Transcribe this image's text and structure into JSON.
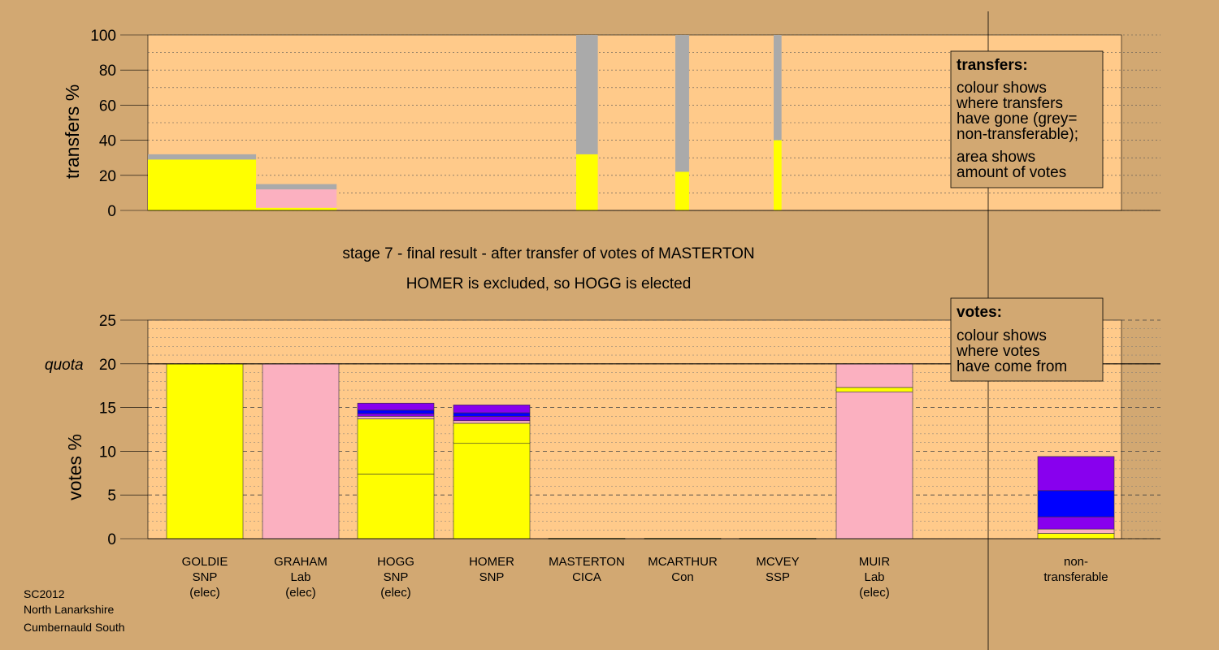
{
  "footer": {
    "line1": "SC2012",
    "line2": "North Lanarkshire",
    "line3": "Cumbernauld South"
  },
  "stage_title": "stage 7 - final result - after transfer of votes of MASTERTON",
  "stage_subtitle": "HOMER is excluded, so HOGG is elected",
  "legend_transfers": {
    "title": "transfers:",
    "lines": [
      "colour shows",
      "where transfers",
      "have gone (grey=",
      "non-transferable);",
      "area shows",
      "amount of votes"
    ]
  },
  "legend_votes": {
    "title": "votes:",
    "lines": [
      "colour shows",
      "where votes",
      "have come from"
    ]
  },
  "colors": {
    "SNP": "#FFFF00",
    "Lab": "#FBB0C0",
    "Purple": "#8800EE",
    "Blue": "#0000FF",
    "Grey": "#AAAAAA",
    "Plot": "#FFCA8A",
    "Background": "#D2A872"
  },
  "chart_data": [
    {
      "type": "bar",
      "title": "",
      "ylabel": "transfers %",
      "ylim": [
        0,
        100
      ],
      "yticks": [
        0,
        20,
        40,
        60,
        80,
        100
      ],
      "bars": [
        {
          "name": "GOLDIE",
          "width_pct_of_votes": 5.5,
          "segments": [
            {
              "color": "SNP",
              "value": 29
            },
            {
              "color": "Grey",
              "value": 3
            }
          ]
        },
        {
          "name": "GRAHAM",
          "width_pct_of_votes": 4.1,
          "segments": [
            {
              "color": "SNP",
              "value": 1.5
            },
            {
              "color": "Lab",
              "value": 10.5
            },
            {
              "color": "Grey",
              "value": 3
            }
          ]
        },
        {
          "name": "MASTERTON",
          "width_pct_of_votes": 1.1,
          "segments": [
            {
              "color": "SNP",
              "value": 32
            },
            {
              "color": "Grey",
              "value": 68
            }
          ]
        },
        {
          "name": "MCARTHUR",
          "width_pct_of_votes": 0.7,
          "segments": [
            {
              "color": "SNP",
              "value": 22
            },
            {
              "color": "Grey",
              "value": 78
            }
          ]
        },
        {
          "name": "MCVEY",
          "width_pct_of_votes": 0.4,
          "segments": [
            {
              "color": "SNP",
              "value": 40
            },
            {
              "color": "Grey",
              "value": 60
            }
          ]
        }
      ]
    },
    {
      "type": "bar",
      "title": "",
      "ylabel": "votes %",
      "ylim": [
        0,
        25
      ],
      "yticks": [
        0,
        5,
        10,
        15,
        20,
        25
      ],
      "quota": 20,
      "quota_label": "quota",
      "categories": [
        {
          "name": "GOLDIE",
          "party": "SNP",
          "status": "(elec)"
        },
        {
          "name": "GRAHAM",
          "party": "Lab",
          "status": "(elec)"
        },
        {
          "name": "HOGG",
          "party": "SNP",
          "status": "(elec)"
        },
        {
          "name": "HOMER",
          "party": "SNP",
          "status": ""
        },
        {
          "name": "MASTERTON",
          "party": "CICA",
          "status": ""
        },
        {
          "name": "MCARTHUR",
          "party": "Con",
          "status": ""
        },
        {
          "name": "MCVEY",
          "party": "SSP",
          "status": ""
        },
        {
          "name": "MUIR",
          "party": "Lab",
          "status": "(elec)"
        },
        {
          "name": "non-",
          "party": "transferable",
          "status": ""
        }
      ],
      "stacks": [
        [
          {
            "color": "SNP",
            "value": 20
          }
        ],
        [
          {
            "color": "Lab",
            "value": 20
          }
        ],
        [
          {
            "color": "SNP",
            "value": 7.4
          },
          {
            "color": "SNP",
            "value": 6.3
          },
          {
            "color": "Lab",
            "value": 0.3
          },
          {
            "color": "Purple",
            "value": 0.3
          },
          {
            "color": "Blue",
            "value": 0.4
          },
          {
            "color": "Purple",
            "value": 0.8
          }
        ],
        [
          {
            "color": "SNP",
            "value": 10.9
          },
          {
            "color": "SNP",
            "value": 2.3
          },
          {
            "color": "Lab",
            "value": 0.3
          },
          {
            "color": "Purple",
            "value": 0.5
          },
          {
            "color": "Blue",
            "value": 0.4
          },
          {
            "color": "Purple",
            "value": 0.9
          }
        ],
        [
          {
            "color": "SNP",
            "value": 0.05
          }
        ],
        [
          {
            "color": "SNP",
            "value": 0.05
          }
        ],
        [
          {
            "color": "SNP",
            "value": 0.05
          }
        ],
        [
          {
            "color": "Lab",
            "value": 16.8
          },
          {
            "color": "SNP",
            "value": 0.5
          },
          {
            "color": "Lab",
            "value": 2.7
          }
        ],
        [
          {
            "color": "SNP",
            "value": 0.6
          },
          {
            "color": "Lab",
            "value": 0.5
          },
          {
            "color": "Purple",
            "value": 1.4
          },
          {
            "color": "Blue",
            "value": 3
          },
          {
            "color": "Purple",
            "value": 3.9
          }
        ]
      ]
    }
  ]
}
